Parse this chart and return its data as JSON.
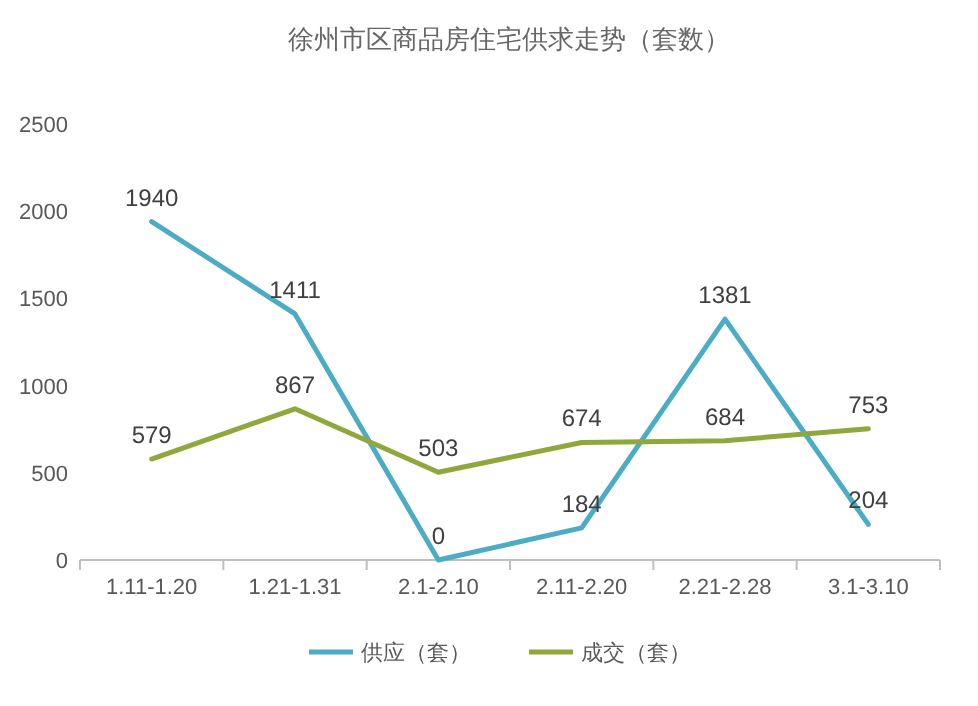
{
  "chart_data": {
    "type": "line",
    "title": "徐州市区商品房住宅供求走势（套数）",
    "categories": [
      "1.11-1.20",
      "1.21-1.31",
      "2.1-2.10",
      "2.11-2.20",
      "2.21-2.28",
      "3.1-3.10"
    ],
    "series": [
      {
        "name": "供应（套）",
        "color": "#4bacc6",
        "values": [
          1940,
          1411,
          0,
          184,
          1381,
          204
        ]
      },
      {
        "name": "成交（套）",
        "color": "#8fa83c",
        "values": [
          579,
          867,
          503,
          674,
          684,
          753
        ]
      }
    ],
    "ylim": [
      0,
      2500
    ],
    "yticks": [
      0,
      500,
      1000,
      1500,
      2000,
      2500
    ],
    "grid": false,
    "legend": "bottom",
    "data_labels": true,
    "marker": "none",
    "line_style": "solid"
  }
}
